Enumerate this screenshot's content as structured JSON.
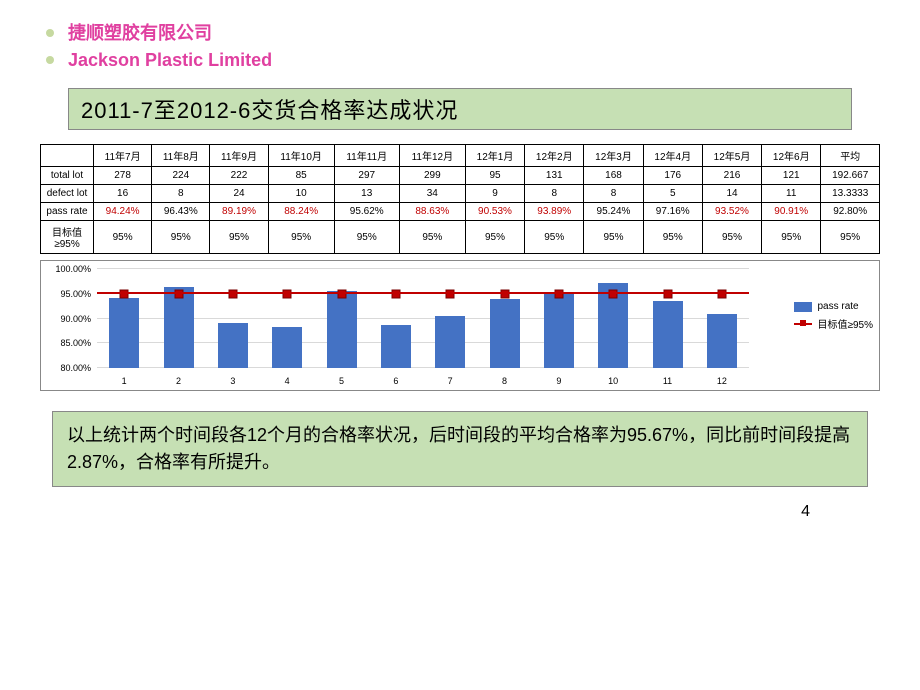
{
  "header": {
    "company_cn": "捷顺塑胶有限公司",
    "company_en": "Jackson  Plastic Limited"
  },
  "title": "2011-7至2012-6交货合格率达成状况",
  "table": {
    "months": [
      "11年7月",
      "11年8月",
      "11年9月",
      "11年10月",
      "11年11月",
      "11年12月",
      "12年1月",
      "12年2月",
      "12年3月",
      "12年4月",
      "12年5月",
      "12年6月",
      "平均"
    ],
    "rows": {
      "total_lot": {
        "label": "total lot",
        "values": [
          "278",
          "224",
          "222",
          "85",
          "297",
          "299",
          "95",
          "131",
          "168",
          "176",
          "216",
          "121",
          "192.667"
        ]
      },
      "defect_lot": {
        "label": "defect lot",
        "values": [
          "16",
          "8",
          "24",
          "10",
          "13",
          "34",
          "9",
          "8",
          "8",
          "5",
          "14",
          "11",
          "13.3333"
        ]
      },
      "pass_rate": {
        "label": "pass rate",
        "values": [
          "94.24%",
          "96.43%",
          "89.19%",
          "88.24%",
          "95.62%",
          "88.63%",
          "90.53%",
          "93.89%",
          "95.24%",
          "97.16%",
          "93.52%",
          "90.91%",
          "92.80%"
        ],
        "red_flags": [
          true,
          false,
          true,
          true,
          false,
          true,
          true,
          true,
          false,
          false,
          true,
          true,
          false
        ]
      },
      "target": {
        "label": "目标值≥95%",
        "values": [
          "95%",
          "95%",
          "95%",
          "95%",
          "95%",
          "95%",
          "95%",
          "95%",
          "95%",
          "95%",
          "95%",
          "95%",
          "95%"
        ]
      }
    }
  },
  "chart": {
    "type": "bar+line",
    "categories": [
      "1",
      "2",
      "3",
      "4",
      "5",
      "6",
      "7",
      "8",
      "9",
      "10",
      "11",
      "12"
    ],
    "bars": [
      94.24,
      96.43,
      89.19,
      88.24,
      95.62,
      88.63,
      90.53,
      93.89,
      95.24,
      97.16,
      93.52,
      90.91
    ],
    "target_value": 95,
    "bar_color": "#4472c4",
    "target_color": "#c00000",
    "ylim": [
      80,
      100
    ],
    "ytick_step": 5,
    "ylabels": [
      "80.00%",
      "85.00%",
      "90.00%",
      "95.00%",
      "100.00%"
    ],
    "legend": {
      "bar": "pass rate",
      "line": "目标值≥95%"
    },
    "grid_color": "#d9d9d9",
    "background_color": "#ffffff"
  },
  "summary": "以上统计两个时间段各12个月的合格率状况，后时间段的平均合格率为95.67%，同比前时间段提高2.87%，合格率有所提升。",
  "page_number": "4"
}
